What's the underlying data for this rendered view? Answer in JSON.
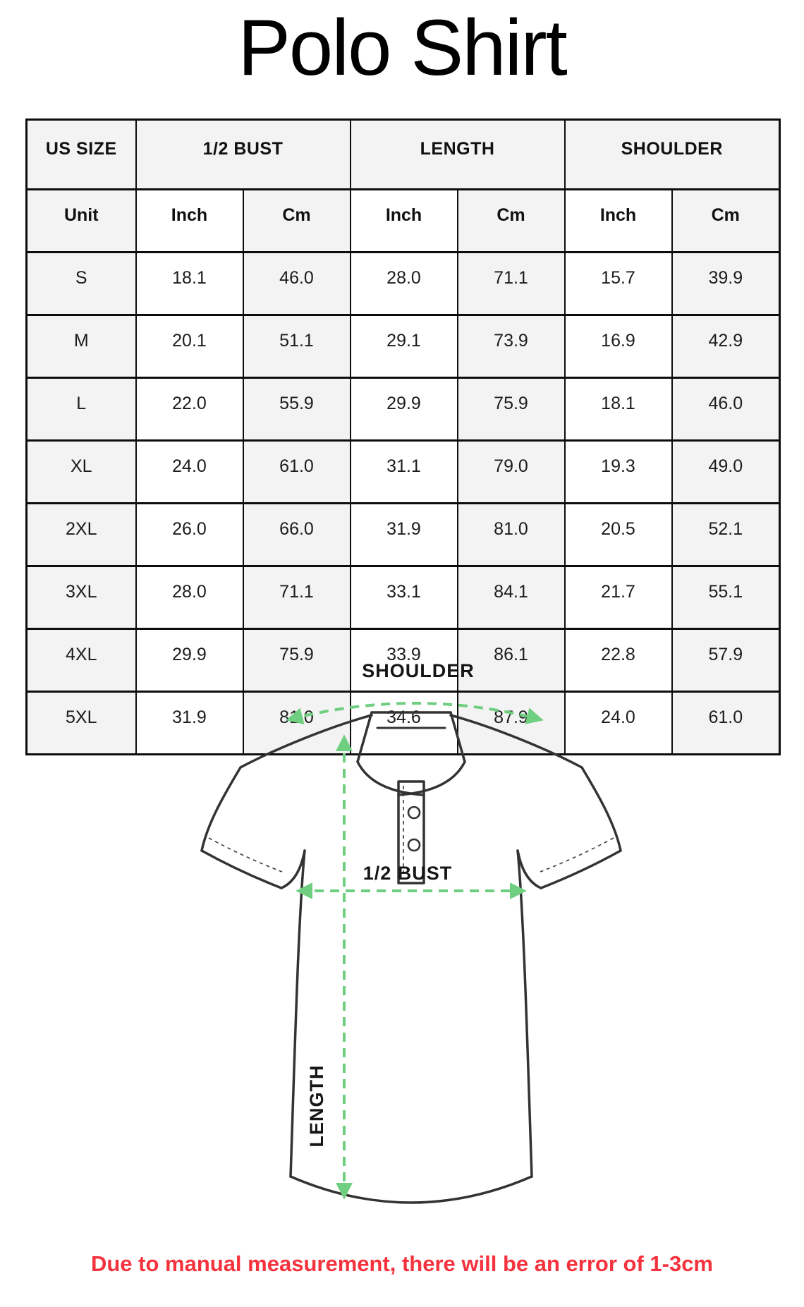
{
  "title": "Polo Shirt",
  "table": {
    "groups": [
      "US SIZE",
      "1/2 BUST",
      "LENGTH",
      "SHOULDER"
    ],
    "unit_row": [
      "Unit",
      "Inch",
      "Cm",
      "Inch",
      "Cm",
      "Inch",
      "Cm"
    ],
    "rows": [
      {
        "size": "S",
        "values": [
          "18.1",
          "46.0",
          "28.0",
          "71.1",
          "15.7",
          "39.9"
        ]
      },
      {
        "size": "M",
        "values": [
          "20.1",
          "51.1",
          "29.1",
          "73.9",
          "16.9",
          "42.9"
        ]
      },
      {
        "size": "L",
        "values": [
          "22.0",
          "55.9",
          "29.9",
          "75.9",
          "18.1",
          "46.0"
        ]
      },
      {
        "size": "XL",
        "values": [
          "24.0",
          "61.0",
          "31.1",
          "79.0",
          "19.3",
          "49.0"
        ]
      },
      {
        "size": "2XL",
        "values": [
          "26.0",
          "66.0",
          "31.9",
          "81.0",
          "20.5",
          "52.1"
        ]
      },
      {
        "size": "3XL",
        "values": [
          "28.0",
          "71.1",
          "33.1",
          "84.1",
          "21.7",
          "55.1"
        ]
      },
      {
        "size": "4XL",
        "values": [
          "29.9",
          "75.9",
          "33.9",
          "86.1",
          "22.8",
          "57.9"
        ]
      },
      {
        "size": "5XL",
        "values": [
          "31.9",
          "81.0",
          "34.6",
          "87.9",
          "24.0",
          "61.0"
        ]
      }
    ]
  },
  "diagram": {
    "shoulder_label": "SHOULDER",
    "bust_label": "1/2 BUST",
    "length_label": "LENGTH"
  },
  "note": {
    "text": "Due to manual measurement, there will be an error of 1-3cm"
  },
  "colors": {
    "arrow_green": "#6fce80",
    "note_red": "#f5333e",
    "cell_gray": "#f3f3f3",
    "outline_dark": "#333333"
  }
}
